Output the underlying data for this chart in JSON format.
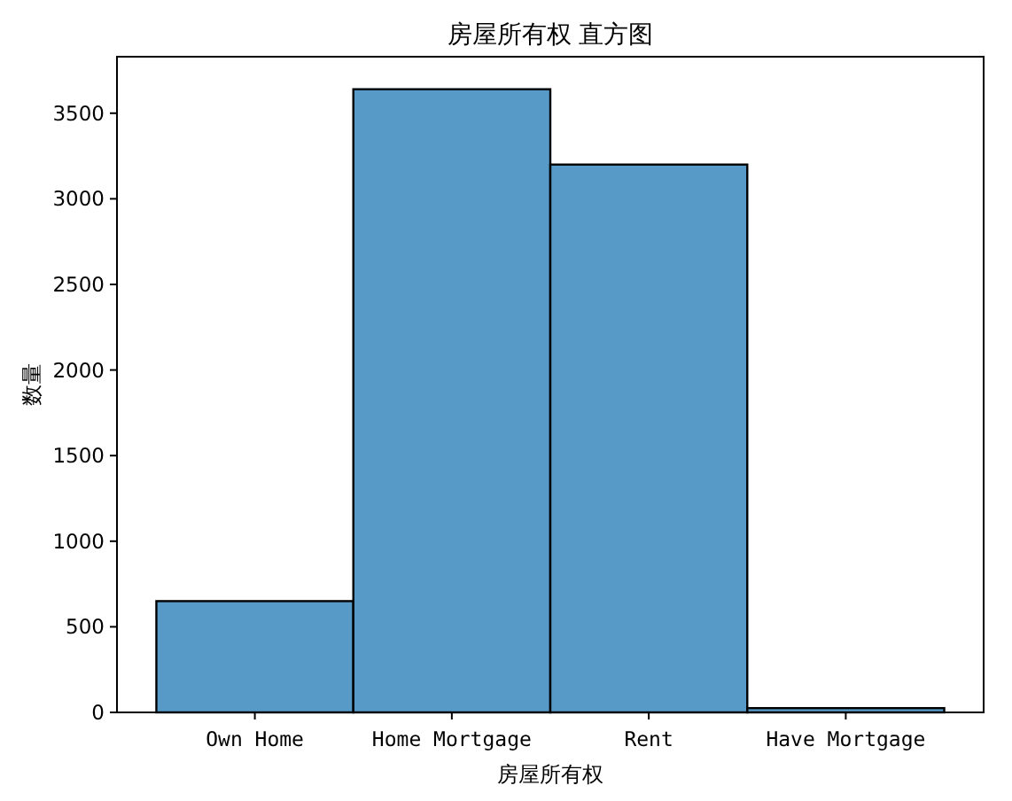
{
  "chart_data": {
    "type": "bar",
    "title": "房屋所有权 直方图",
    "xlabel": "房屋所有权",
    "ylabel": "数量",
    "categories": [
      "Own Home",
      "Home Mortgage",
      "Rent",
      "Have Mortgage"
    ],
    "values": [
      650,
      3640,
      3200,
      25
    ],
    "color": "#5799c7",
    "ylim": [
      0,
      3830
    ],
    "yticks": [
      0,
      500,
      1000,
      1500,
      2000,
      2500,
      3000,
      3500
    ],
    "grid": false
  }
}
